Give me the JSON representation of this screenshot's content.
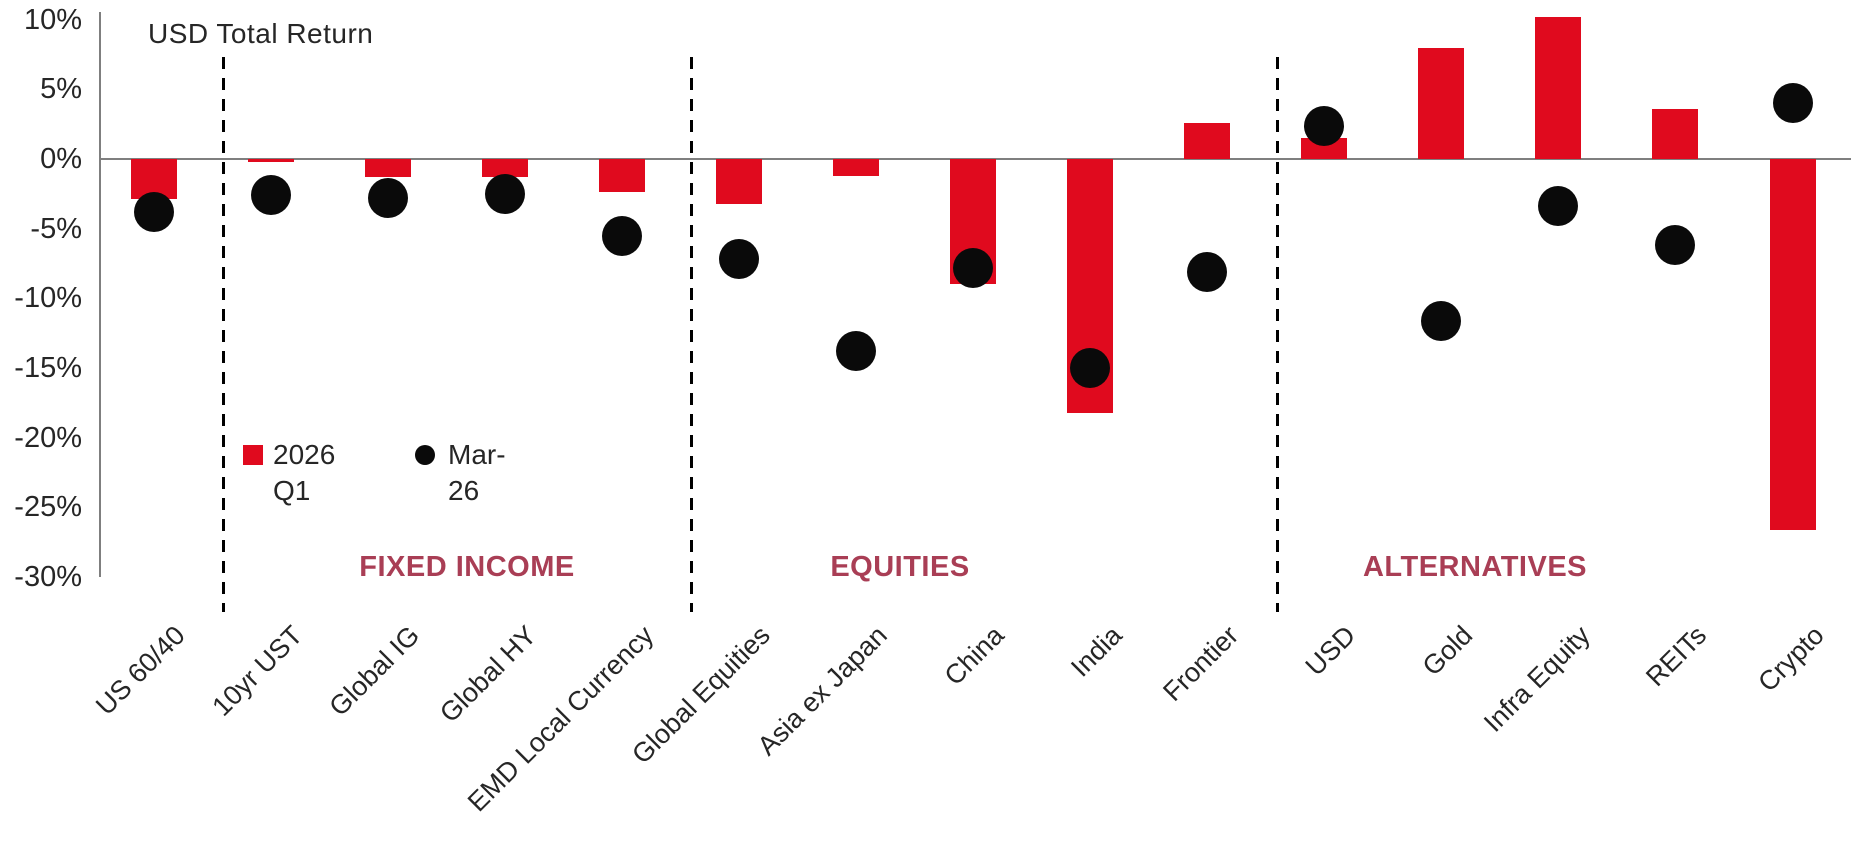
{
  "chart_data": {
    "type": "bar",
    "title": "USD Total Return",
    "categories": [
      "US 60/40",
      "10yr UST",
      "Global IG",
      "Global HY",
      "EMD Local Currency",
      "Global Equities",
      "Asia ex Japan",
      "China",
      "India",
      "Frontier",
      "USD",
      "Gold",
      "Infra Equity",
      "REITs",
      "Crypto"
    ],
    "series": [
      {
        "name": "2026 Q1",
        "type": "bar",
        "color": "#E00A1E",
        "values": [
          -2.9,
          -0.2,
          -1.3,
          -1.3,
          -2.4,
          -3.2,
          -1.2,
          -9.0,
          -18.2,
          2.6,
          1.5,
          8.0,
          10.2,
          3.6,
          -26.6
        ]
      },
      {
        "name": "Mar-26",
        "type": "scatter",
        "color": "#0a0a0a",
        "values": [
          -3.8,
          -2.6,
          -2.8,
          -2.5,
          -5.5,
          -7.2,
          -13.8,
          -7.8,
          -15.0,
          -8.1,
          2.4,
          -11.6,
          -3.4,
          -6.2,
          4.0
        ]
      }
    ],
    "y_axis": {
      "ticks": [
        10,
        5,
        0,
        -5,
        -10,
        -15,
        -20,
        -25,
        -30
      ],
      "tick_suffix": "%",
      "min": -30,
      "max": 10
    },
    "groups": [
      {
        "label": "FIXED INCOME",
        "start": 1,
        "end": 4
      },
      {
        "label": "EQUITIES",
        "start": 5,
        "end": 9
      },
      {
        "label": "ALTERNATIVES",
        "start": 10,
        "end": 14
      }
    ],
    "separators_before": [
      1,
      5,
      10
    ],
    "group_label_color": "#A93E55",
    "axis_color": "#7f7f7f",
    "grid": false,
    "legend_position": "inside-left"
  }
}
